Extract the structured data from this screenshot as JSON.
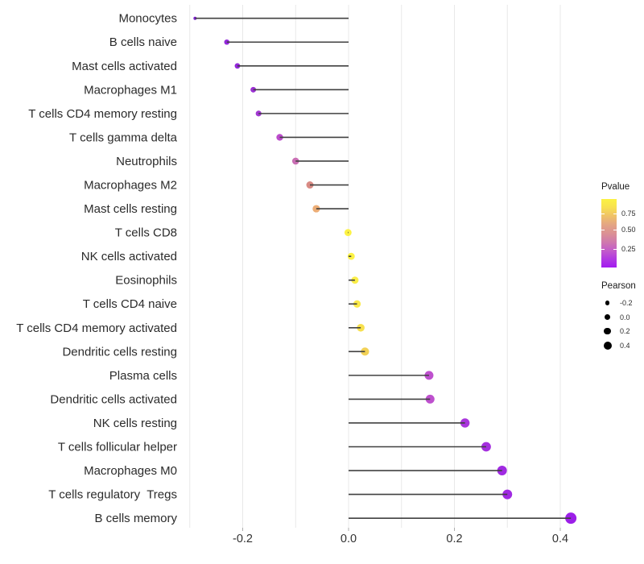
{
  "figure": {
    "background": "#ffffff",
    "grid_color": "#e8e8e8",
    "stem_color": "#404040",
    "axis_tick_color": "#adadad"
  },
  "legends": {
    "pvalue": {
      "title": "Pvalue",
      "tick_labels": [
        "0.75",
        "0.50",
        "0.25"
      ],
      "gradient_bottom": "#A21BF0",
      "gradient_mid": "#DB9194",
      "gradient_top": "#FBF243",
      "gradient_stops": [
        "#A21BF0",
        "#B23BE0",
        "#C35DC9",
        "#D07BAB",
        "#DB9194",
        "#E4A683",
        "#EFC168",
        "#F8E14F",
        "#FBF243"
      ],
      "value_range": [
        0,
        0.95
      ]
    },
    "pearson": {
      "title": "Pearson",
      "items": [
        {
          "label": "-0.2",
          "diameter": 5.3
        },
        {
          "label": "0.0",
          "diameter": 7.3
        },
        {
          "label": "0.2",
          "diameter": 8.7
        },
        {
          "label": "0.4",
          "diameter": 10
        }
      ]
    }
  },
  "chart_data": {
    "type": "scatter",
    "subtype": "lollipop",
    "title": "",
    "xlabel": "",
    "ylabel": "",
    "legend_position": "right",
    "xlim": [
      -0.31,
      0.45
    ],
    "x_ticks": [
      -0.2,
      0.0,
      0.2,
      0.4
    ],
    "x_tick_labels": [
      "-0.2",
      "0.0",
      "0.2",
      "0.4"
    ],
    "gridlines": [
      -0.3,
      -0.2,
      -0.1,
      0.0,
      0.1,
      0.2,
      0.3,
      0.4
    ],
    "grid_vertical_only": true,
    "color_encodes": "Pvalue",
    "size_encodes": "Pearson",
    "points": [
      {
        "label": "Monocytes",
        "pearson": -0.29,
        "color": "#7D1ED1",
        "diameter": 4.0
      },
      {
        "label": "B cells naive",
        "pearson": -0.23,
        "color": "#9428DC",
        "diameter": 6.6
      },
      {
        "label": "Mast cells activated",
        "pearson": -0.21,
        "color": "#9328DA",
        "diameter": 6.8
      },
      {
        "label": "Macrophages M1",
        "pearson": -0.18,
        "color": "#9C30D4",
        "diameter": 7.0
      },
      {
        "label": "T cells CD4 memory resting",
        "pearson": -0.17,
        "color": "#A238D2",
        "diameter": 7.2
      },
      {
        "label": "T cells gamma delta",
        "pearson": -0.13,
        "color": "#BC4CCC",
        "diameter": 8.4
      },
      {
        "label": "Neutrophils",
        "pearson": -0.1,
        "color": "#C96FB4",
        "diameter": 8.6
      },
      {
        "label": "Macrophages M2",
        "pearson": -0.073,
        "color": "#D98B84",
        "diameter": 9.0
      },
      {
        "label": "Mast cells resting",
        "pearson": -0.061,
        "color": "#ECAD76",
        "diameter": 9.2
      },
      {
        "label": "T cells CD8",
        "pearson": -0.001,
        "color": "#FCF244",
        "diameter": 8.8
      },
      {
        "label": "NK cells activated",
        "pearson": 0.005,
        "color": "#FCF244",
        "diameter": 8.8
      },
      {
        "label": "Eosinophils",
        "pearson": 0.012,
        "color": "#FBEE47",
        "diameter": 9.0
      },
      {
        "label": "T cells CD4 naive",
        "pearson": 0.016,
        "color": "#FAE94A",
        "diameter": 9.2
      },
      {
        "label": "T cells CD4 memory activated",
        "pearson": 0.023,
        "color": "#F7E04E",
        "diameter": 9.6
      },
      {
        "label": "Dendritic cells resting",
        "pearson": 0.031,
        "color": "#F2D156",
        "diameter": 10.2
      },
      {
        "label": "Plasma cells",
        "pearson": 0.152,
        "color": "#BE50CE",
        "diameter": 11.0
      },
      {
        "label": "Dendritic cells activated",
        "pearson": 0.154,
        "color": "#BE50CE",
        "diameter": 11.0
      },
      {
        "label": "NK cells resting",
        "pearson": 0.22,
        "color": "#A935DC",
        "diameter": 11.4
      },
      {
        "label": "T cells follicular helper",
        "pearson": 0.26,
        "color": "#A52FDF",
        "diameter": 11.8
      },
      {
        "label": "Macrophages M0",
        "pearson": 0.29,
        "color": "#A02AE2",
        "diameter": 12.0
      },
      {
        "label": "T cells regulatory  Tregs",
        "pearson": 0.3,
        "color": "#A02AE2",
        "diameter": 12.0
      },
      {
        "label": "B cells memory",
        "pearson": 0.42,
        "color": "#9C1FE8",
        "diameter": 14.0
      }
    ]
  }
}
